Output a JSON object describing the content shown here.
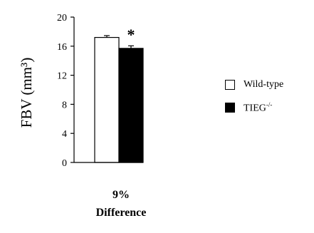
{
  "chart_data": {
    "type": "bar",
    "categories": [
      "Wild-type",
      "TIEG-/-"
    ],
    "values": [
      17.2,
      15.7
    ],
    "errors": [
      0.25,
      0.35
    ],
    "colors": [
      "#ffffff",
      "#000000"
    ],
    "ylabel": "FBV (mm³)",
    "ylim": [
      0,
      20
    ],
    "yticks": [
      0,
      4,
      8,
      12,
      16,
      20
    ],
    "annotation": "*",
    "caption_line1": "9%",
    "caption_line2": "Difference",
    "legend": [
      {
        "label": "Wild-type",
        "color": "#ffffff"
      },
      {
        "label": "TIEG",
        "superscript": "-/-",
        "color": "#000000"
      }
    ],
    "legend_position": "right",
    "grid": false
  }
}
